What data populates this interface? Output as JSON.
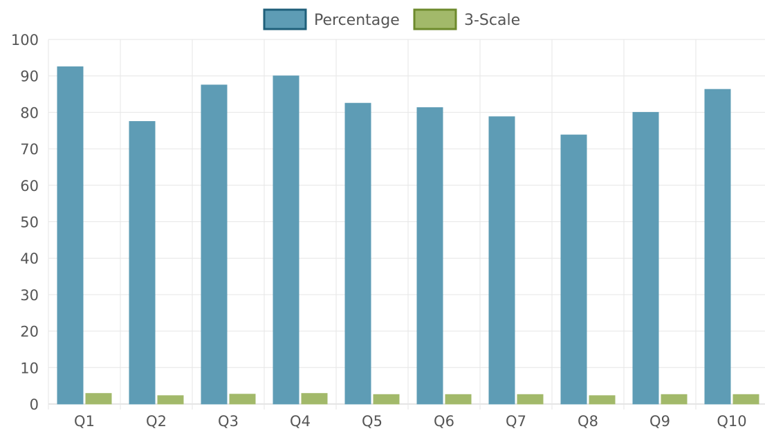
{
  "chart_data": {
    "type": "bar",
    "categories": [
      "Q1",
      "Q2",
      "Q3",
      "Q4",
      "Q5",
      "Q6",
      "Q7",
      "Q8",
      "Q9",
      "Q10"
    ],
    "series": [
      {
        "name": "Percentage",
        "color": "#5e9cb5",
        "border_color": "#1f5f7a",
        "values": [
          92.5,
          77.5,
          87.5,
          90.0,
          82.5,
          81.3,
          78.8,
          73.8,
          80.0,
          86.3
        ]
      },
      {
        "name": "3-Scale",
        "color": "#a2b96a",
        "border_color": "#6d8a2c",
        "values": [
          2.9,
          2.3,
          2.7,
          2.9,
          2.6,
          2.6,
          2.6,
          2.3,
          2.6,
          2.6
        ]
      }
    ],
    "ylim": [
      0,
      100
    ],
    "yticks": [
      0,
      10,
      20,
      30,
      40,
      50,
      60,
      70,
      80,
      90,
      100
    ],
    "grid": true,
    "legend_position": "top-center"
  }
}
